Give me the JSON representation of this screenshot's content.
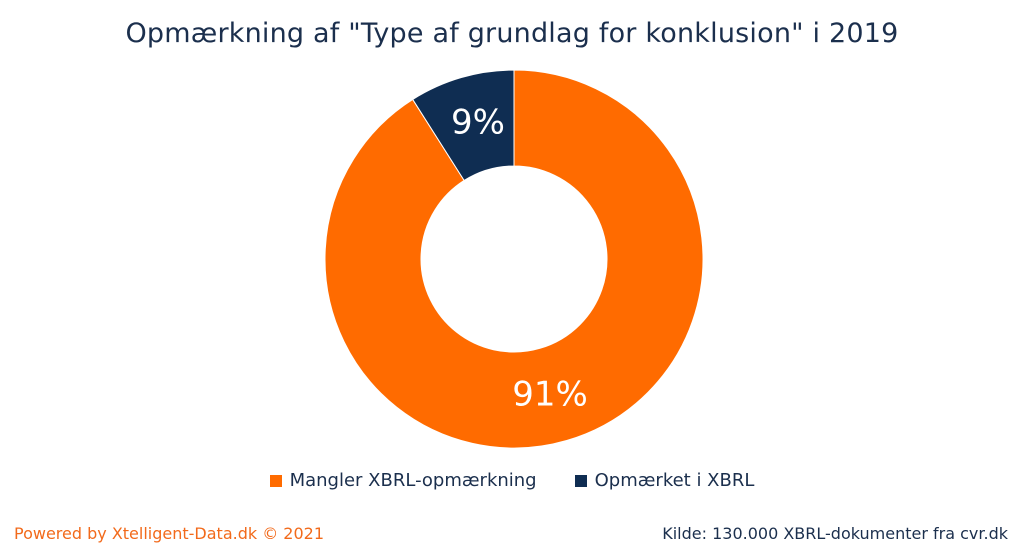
{
  "chart_data": {
    "type": "pie",
    "title": "Opmærkning af \"Type af grundlag for konklusion\" i 2019",
    "donut": true,
    "categories": [
      "Mangler XBRL-opmærkning",
      "Opmærket i XBRL"
    ],
    "values": [
      91,
      9
    ],
    "labels": [
      "91%",
      "9%"
    ],
    "colors": [
      "#ff6b00",
      "#0f2d52"
    ],
    "legend_position": "bottom"
  },
  "footer": {
    "powered_by": "Powered by Xtelligent-Data.dk © 2021",
    "source": "Kilde: 130.000 XBRL-dokumenter fra cvr.dk"
  }
}
